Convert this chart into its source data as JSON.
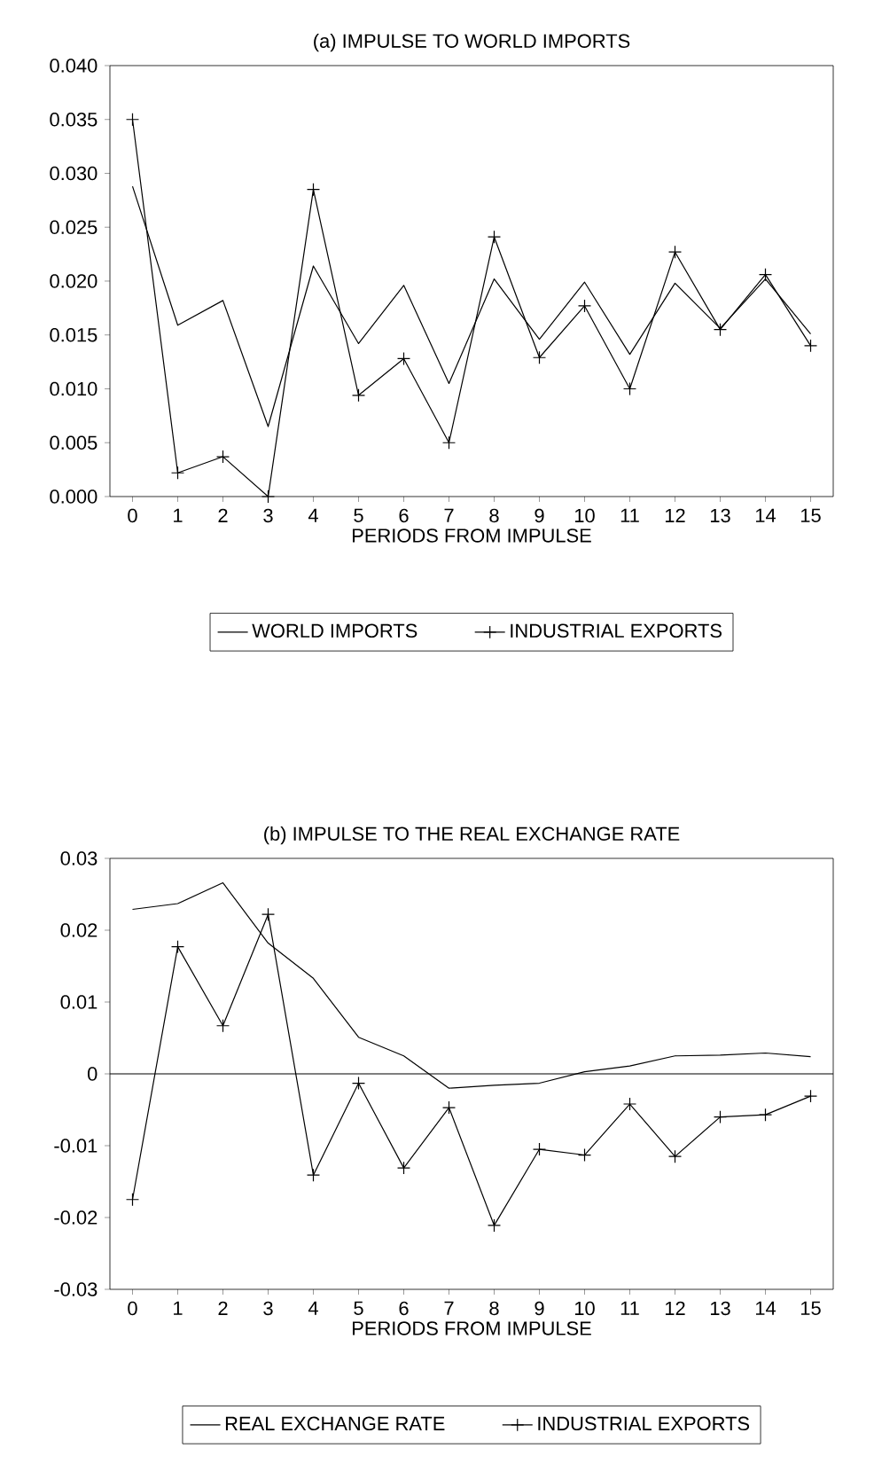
{
  "chart_data": [
    {
      "type": "line",
      "title": "(a) IMPULSE TO WORLD IMPORTS",
      "xlabel": "PERIODS FROM IMPULSE",
      "x": [
        0,
        1,
        2,
        3,
        4,
        5,
        6,
        7,
        8,
        9,
        10,
        11,
        12,
        13,
        14,
        15
      ],
      "xlim": [
        -0.5,
        15.5
      ],
      "xticks": [
        0,
        1,
        2,
        3,
        4,
        5,
        6,
        7,
        8,
        9,
        10,
        11,
        12,
        13,
        14,
        15
      ],
      "ylim": [
        0,
        0.04
      ],
      "yticks": [
        {
          "value": 0,
          "label": "0.000"
        },
        {
          "value": 0.005,
          "label": "0.005"
        },
        {
          "value": 0.01,
          "label": "0.010"
        },
        {
          "value": 0.015,
          "label": "0.015"
        },
        {
          "value": 0.02,
          "label": "0.020"
        },
        {
          "value": 0.025,
          "label": "0.025"
        },
        {
          "value": 0.03,
          "label": "0.030"
        },
        {
          "value": 0.035,
          "label": "0.035"
        },
        {
          "value": 0.04,
          "label": "0.040"
        }
      ],
      "legend": "bottom",
      "series": [
        {
          "name": "WORLD IMPORTS",
          "color": "#000000",
          "marker": "none",
          "values": [
            0.0288,
            0.0159,
            0.0182,
            0.0065,
            0.0214,
            0.0142,
            0.0196,
            0.0105,
            0.0202,
            0.0146,
            0.0199,
            0.0132,
            0.0198,
            0.0156,
            0.0202,
            0.0151
          ]
        },
        {
          "name": "INDUSTRIAL EXPORTS",
          "color": "#000000",
          "marker": "cross",
          "values": [
            0.035,
            0.0022,
            0.0037,
            0.0,
            0.0285,
            0.0094,
            0.0128,
            0.005,
            0.0241,
            0.0129,
            0.0177,
            0.01,
            0.0227,
            0.0155,
            0.0206,
            0.014
          ]
        }
      ]
    },
    {
      "type": "line",
      "title": "(b) IMPULSE TO THE REAL EXCHANGE RATE",
      "xlabel": "PERIODS FROM IMPULSE",
      "x": [
        0,
        1,
        2,
        3,
        4,
        5,
        6,
        7,
        8,
        9,
        10,
        11,
        12,
        13,
        14,
        15
      ],
      "xlim": [
        -0.5,
        15.5
      ],
      "xticks": [
        0,
        1,
        2,
        3,
        4,
        5,
        6,
        7,
        8,
        9,
        10,
        11,
        12,
        13,
        14,
        15
      ],
      "ylim": [
        -0.03,
        0.03
      ],
      "yticks": [
        -0.03,
        -0.02,
        -0.01,
        0,
        0.01,
        0.02,
        0.03
      ],
      "legend": "bottom",
      "ref_lines": [
        {
          "axis": "y",
          "value": 0,
          "color": "#000000"
        }
      ],
      "series": [
        {
          "name": "REAL EXCHANGE RATE",
          "color": "#000000",
          "marker": "none",
          "values": [
            0.0229,
            0.0237,
            0.0266,
            0.0182,
            0.0133,
            0.0051,
            0.0025,
            -0.002,
            -0.0016,
            -0.0013,
            0.0003,
            0.0011,
            0.0025,
            0.0026,
            0.0029,
            0.0024
          ]
        },
        {
          "name": "INDUSTRIAL EXPORTS",
          "color": "#000000",
          "marker": "cross",
          "values": [
            -0.0175,
            0.0177,
            0.0067,
            0.0222,
            -0.0141,
            -0.0013,
            -0.0131,
            -0.0047,
            -0.0211,
            -0.0105,
            -0.0113,
            -0.0042,
            -0.0115,
            -0.006,
            -0.0057,
            -0.0031
          ]
        }
      ]
    }
  ]
}
